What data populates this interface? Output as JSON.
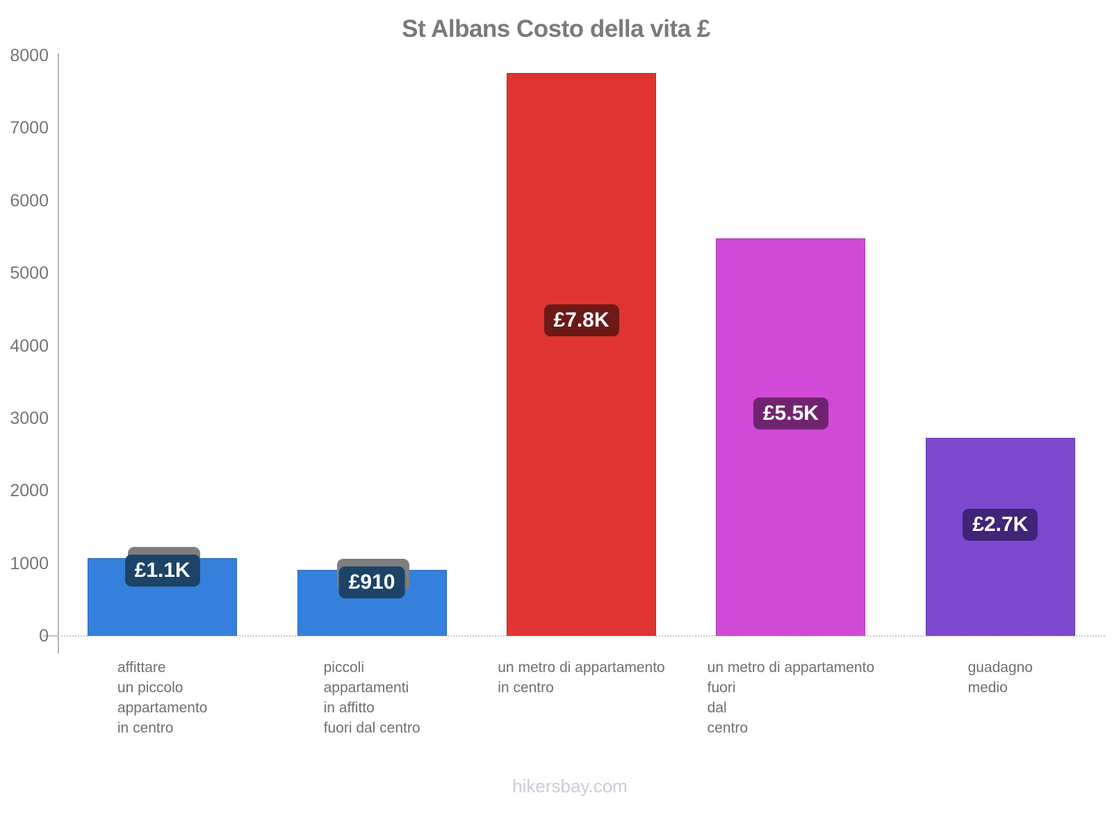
{
  "chart_data": {
    "type": "bar",
    "title": "St Albans Costo della vita £",
    "currency": "£",
    "xlabel": "",
    "ylabel": "",
    "ylim": [
      0,
      8000
    ],
    "yticks": [
      0,
      1000,
      2000,
      3000,
      4000,
      5000,
      6000,
      7000,
      8000
    ],
    "grid": "baseline-dotted-only",
    "legend": "none",
    "categories": [
      "affittare\nun piccolo\nappartamento\nin centro",
      "piccoli\nappartamenti\nin affitto\nfuori dal centro",
      "un metro di appartamento\nin centro",
      "un metro di appartamento\nfuori\ndal\ncentro",
      "guadagno\nmedio"
    ],
    "values": [
      1070,
      910,
      7760,
      5480,
      2730
    ],
    "value_labels": [
      "£1.1K",
      "£910",
      "£7.8K",
      "£5.5K",
      "£2.7K"
    ],
    "bar_colors": [
      "#3580DC",
      "#3580DC",
      "#E03432",
      "#D04AD6",
      "#7C49CE"
    ],
    "badge_colors": [
      "#1D4467",
      "#1D4467",
      "#6C1A17",
      "#702470",
      "#3F2478"
    ],
    "axis_color": "#b3b3b3",
    "tick_label_color": "#757575",
    "title_color": "#7a7a7a"
  },
  "footer": {
    "text": "hikersbay.com"
  }
}
